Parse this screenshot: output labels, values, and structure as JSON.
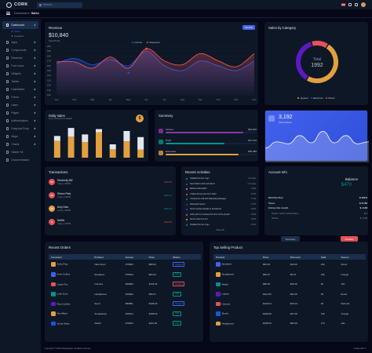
{
  "app": {
    "name": "CORK"
  },
  "search": {
    "placeholder": "Search..."
  },
  "breadcrumb": {
    "parent": "Dashboard",
    "current": "Sales"
  },
  "sidebar": {
    "items": [
      {
        "label": "Dashboard",
        "active": true,
        "icon": "home-icon"
      },
      {
        "label": "Apps",
        "icon": "cpu-icon"
      },
      {
        "label": "Components",
        "icon": "box-icon"
      },
      {
        "label": "Elements",
        "icon": "zap-icon"
      },
      {
        "label": "Font Icons",
        "icon": "target-icon"
      },
      {
        "label": "Widgets",
        "icon": "airplay-icon"
      },
      {
        "label": "Tables",
        "icon": "layout-icon"
      },
      {
        "label": "DataTables",
        "icon": "layers-icon"
      },
      {
        "label": "Forms",
        "icon": "clipboard-icon"
      },
      {
        "label": "Users",
        "icon": "users-icon"
      },
      {
        "label": "Pages",
        "icon": "file-icon"
      },
      {
        "label": "Authentication",
        "icon": "lock-icon"
      },
      {
        "label": "Drag and Drop",
        "icon": "move-icon"
      },
      {
        "label": "Maps",
        "icon": "map-icon"
      },
      {
        "label": "Charts",
        "icon": "pie-chart-icon"
      },
      {
        "label": "Starter Kit",
        "icon": "terminal-icon"
      },
      {
        "label": "Documentation",
        "icon": "book-icon"
      }
    ],
    "subitems": [
      "Sales",
      "Analytics"
    ]
  },
  "revenue": {
    "title": "Revenue",
    "total": "$10,840",
    "total_label": "Total Profit",
    "period": "Monthly",
    "legend": [
      "Income",
      "Expenses"
    ],
    "colors": {
      "income": "#e7515a",
      "expenses": "#1b55e2"
    }
  },
  "sales_category": {
    "title": "Sales by Category",
    "center_label": "Total",
    "center_value": "1992",
    "legend": [
      "Apparel",
      "Electronic",
      "Others"
    ],
    "colors": [
      "#e2a03f",
      "#5c1ac3",
      "#e7515a"
    ]
  },
  "daily_sales": {
    "title": "Daily sales",
    "subtitle": "Go to columns for details",
    "icon": "dollar-icon",
    "coin": "$"
  },
  "summary": {
    "title": "Summary",
    "rows": [
      {
        "label": "Income",
        "value": "$92,600",
        "color": "#8738a7",
        "pct": 0.85
      },
      {
        "label": "Profit",
        "value": "$37,515",
        "color": "#009688",
        "pct": 0.65
      },
      {
        "label": "Expenses",
        "value": "$55,085",
        "color": "#e2a03f",
        "pct": 0.8
      }
    ]
  },
  "total_orders": {
    "value": "3,192",
    "label": "Total Orders"
  },
  "transactions": {
    "title": "Transactions",
    "rows": [
      {
        "initials": "SP",
        "name": "Electricity Bill",
        "date": "4 Aug, 1:00PM",
        "amount": "-$16.44",
        "color": "#e7515a",
        "amount_color": "#e7515a"
      },
      {
        "initials": "SP",
        "name": "Shaun Park",
        "date": "4 Aug, 1:00PM",
        "amount": "+$66.44",
        "color": "#e7515a",
        "amount_color": "#009688"
      },
      {
        "initials": "AD",
        "name": "Amy Diaz",
        "date": "4 Aug, 1:00PM",
        "amount": "+$66.44",
        "color": "#e2a03f",
        "amount_color": "#009688"
      },
      {
        "initials": "N",
        "name": "Netflix",
        "date": "4 Aug, 1:00PM",
        "amount": "-$32.00",
        "color": "#e7515a",
        "amount_color": "#e7515a"
      }
    ]
  },
  "activities": {
    "title": "Recent Activities",
    "rows": [
      {
        "text": "Updated Server Logs",
        "time": "Just Now",
        "color": "#009688"
      },
      {
        "text": "Send Mail to HR and Admin",
        "time": "2 min ago",
        "color": "#1b55e2"
      },
      {
        "text": "Backup Files EOD",
        "time": "14:00",
        "color": "#e2a03f"
      },
      {
        "text": "Collect documents from Sara",
        "time": "16:00",
        "color": "#e7515a"
      },
      {
        "text": "Conference call with Marketing Manager",
        "time": "17:00",
        "color": "#009688"
      },
      {
        "text": "Rebooted Server",
        "time": "17:00",
        "color": "#5c1ac3"
      },
      {
        "text": "Send contract details to Freelancer",
        "time": "18:00",
        "color": "#1b55e2"
      },
      {
        "text": "Kelly want to increase the time of the project",
        "time": "19:00",
        "color": "#e7515a"
      },
      {
        "text": "Server down for 1hr",
        "time": "19:00",
        "color": "#e2a03f"
      },
      {
        "text": "Updated Server Logs",
        "time": "19:00",
        "color": "#009688"
      }
    ],
    "view_all": "View All"
  },
  "account": {
    "title": "Account Info",
    "balance_label": "Balance",
    "balance": "$470",
    "rows": [
      {
        "label": "Monthly Plan",
        "value": "$ 199.0",
        "sub": false
      },
      {
        "label": "Taxes",
        "value": "$ 17.82",
        "sub": false
      },
      {
        "label": "Extras this month",
        "value": "$ -0.68",
        "sub": false
      },
      {
        "label": "Netflix Yearly Subscription",
        "value": "$ 0",
        "sub": true
      },
      {
        "label": "Others",
        "value": "$ -0.68",
        "sub": true
      }
    ],
    "summary_btn": "Summary",
    "transfer_btn": "Transfer"
  },
  "recent_orders": {
    "title": "Recent Orders",
    "headers": [
      "Customer",
      "Product",
      "Invoice",
      "Price",
      "Status"
    ],
    "rows": [
      {
        "customer": "Andy King",
        "product": "Nike Sport",
        "invoice": "#76894",
        "price": "$88.00",
        "status": "Shipped",
        "color": "#e2a03f"
      },
      {
        "customer": "Irene Collins",
        "product": "Speakers",
        "invoice": "#75844",
        "price": "$84.00",
        "status": "Paid",
        "color": "#4361ee"
      },
      {
        "customer": "Laurie Fox",
        "product": "Camera",
        "invoice": "#66894",
        "price": "$126.04",
        "status": "Pending",
        "color": "#e7515a"
      },
      {
        "customer": "Luke Ivory",
        "product": "Headphone",
        "invoice": "#46894",
        "price": "$56.07",
        "status": "Paid",
        "color": "#009688"
      },
      {
        "customer": "Ryan Collins",
        "product": "Sport",
        "invoice": "#89891",
        "price": "$108.09",
        "status": "Shipped",
        "color": "#5c1ac3"
      },
      {
        "customer": "Nia Hillyer",
        "product": "Sunglasses",
        "invoice": "#26974",
        "price": "$168.09",
        "status": "Paid",
        "color": "#e2a03f"
      },
      {
        "customer": "Sonia Shaw",
        "product": "Watch",
        "invoice": "#76844",
        "price": "$110.00",
        "status": "Paid",
        "color": "#1b55e2"
      }
    ]
  },
  "top_selling": {
    "title": "Top Selling Product",
    "headers": [
      "Product",
      "Price",
      "Discount",
      "Sold",
      "Source"
    ],
    "rows": [
      {
        "product": "Speakers",
        "price": "$84.00",
        "discount": "$10.00",
        "sold": "240",
        "source": "Direct",
        "color": "#4361ee"
      },
      {
        "product": "Sunglasses",
        "price": "$56.07",
        "discount": "$5.07",
        "sold": "190",
        "source": "Google",
        "color": "#e2a03f"
      },
      {
        "product": "Watch",
        "price": "$88.00",
        "discount": "$20.00",
        "sold": "66",
        "source": "Ads",
        "color": "#009688"
      },
      {
        "product": "Laptop",
        "price": "$110.00",
        "discount": "$33.00",
        "sold": "35",
        "source": "Email",
        "color": "#5c1ac3"
      },
      {
        "product": "Camera",
        "price": "$126.04",
        "discount": "$26.04",
        "sold": "30",
        "source": "Referral",
        "color": "#e7515a"
      },
      {
        "product": "Shoes",
        "price": "$108.09",
        "discount": "$47.09",
        "sold": "130",
        "source": "Google",
        "color": "#1b55e2"
      },
      {
        "product": "Headphone",
        "price": "$168.09",
        "discount": "$60.09",
        "sold": "170",
        "source": "Ads",
        "color": "#e2a03f"
      }
    ]
  },
  "footer": {
    "left": "Copyright © 2020 DesignReset, All rights reserved.",
    "right": "Coded with ♥"
  },
  "chart_data": [
    {
      "type": "area",
      "title": "Revenue",
      "categories": [
        "Jan",
        "Feb",
        "Mar",
        "Apr",
        "May",
        "Jun",
        "Jul",
        "Aug",
        "Sep",
        "Oct",
        "Nov",
        "Dec"
      ],
      "series": [
        {
          "name": "Income",
          "values": [
            16800,
            16800,
            15500,
            17800,
            15500,
            19500,
            17000,
            16200,
            18500,
            17000,
            15800,
            18500
          ]
        },
        {
          "name": "Expenses",
          "values": [
            16500,
            17500,
            16200,
            17300,
            16000,
            19000,
            16000,
            15000,
            17000,
            16000,
            15000,
            17000
          ]
        }
      ],
      "y_ticks": [
        "10K",
        "11K",
        "12K",
        "13K",
        "14K",
        "15K",
        "16K",
        "17K",
        "18K",
        "19K",
        "20K"
      ],
      "ylim": [
        10000,
        20000
      ]
    },
    {
      "type": "pie",
      "title": "Sales by Category",
      "categories": [
        "Apparel",
        "Electronic",
        "Others"
      ],
      "values": [
        985,
        737,
        270
      ]
    },
    {
      "type": "bar",
      "title": "Daily sales",
      "categories": [
        "",
        "",
        "",
        "",
        "",
        "",
        ""
      ],
      "series": [
        {
          "name": "",
          "values": [
            44,
            55,
            41,
            67,
            22,
            43,
            21
          ]
        },
        {
          "name": "",
          "values": [
            13,
            23,
            20,
            8,
            13,
            27,
            33
          ]
        }
      ]
    },
    {
      "type": "area",
      "title": "Total Orders",
      "categories": [
        "",
        "",
        "",
        "",
        "",
        "",
        "",
        "",
        "",
        ""
      ],
      "series": [
        {
          "name": "",
          "values": [
            28,
            40,
            36,
            52,
            38,
            60,
            38,
            52,
            36,
            40
          ]
        }
      ]
    }
  ]
}
